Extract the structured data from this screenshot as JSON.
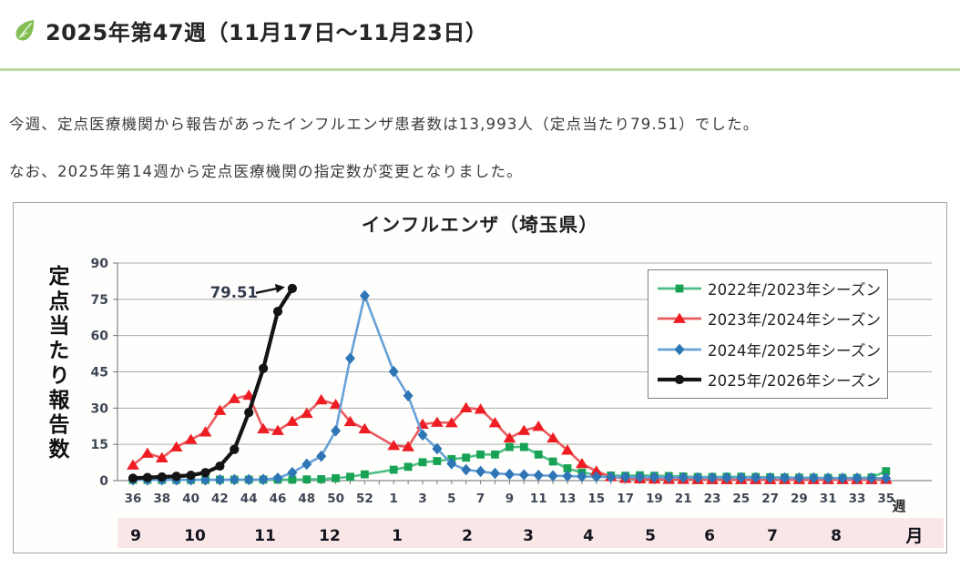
{
  "page": {
    "header": {
      "icon": "leaf-icon",
      "title": "2025年第47週（11月17日～11月23日）",
      "leaf_color": "#84bf55",
      "underline_color": "#bcdaa4"
    },
    "paragraphs": [
      "今週、定点医療機関から報告があったインフルエンザ患者数は13,993人（定点当たり79.51）でした。",
      "なお、2025年第14週から定点医療機関の指定数が変更となりました。"
    ]
  },
  "figure": {
    "title": "インフルエンザ（埼玉県）",
    "y_axis": {
      "title": "定点当たり報告数",
      "ticks": [
        0,
        15,
        30,
        45,
        60,
        75,
        90
      ],
      "max": 90
    },
    "x_axis": {
      "unit_week": "週",
      "unit_month": "月",
      "month_labels": [
        "9",
        "10",
        "11",
        "12",
        "1",
        "2",
        "3",
        "4",
        "5",
        "6",
        "7",
        "8"
      ],
      "month_band_color": "#f9e7e7"
    },
    "annotation": {
      "text": "79.51"
    },
    "chart_data": {
      "type": "line",
      "x_label": "週 (week, 36→52 then 1→35)",
      "weeks": [
        36,
        37,
        38,
        39,
        40,
        41,
        42,
        43,
        44,
        45,
        46,
        47,
        48,
        49,
        50,
        51,
        52,
        53,
        1,
        2,
        3,
        4,
        5,
        6,
        7,
        8,
        9,
        10,
        11,
        12,
        13,
        14,
        15,
        16,
        17,
        18,
        19,
        20,
        21,
        22,
        23,
        24,
        25,
        26,
        27,
        28,
        29,
        30,
        31,
        32,
        33,
        34,
        35
      ],
      "ylim": [
        0,
        90
      ],
      "grid": true,
      "legend_position": "top-right",
      "series": [
        {
          "name": "2022年/2023年シーズン",
          "marker": "square",
          "color": "#17a254",
          "line_color": "#4fbd87",
          "values": [
            0.3,
            0.3,
            0.3,
            0.3,
            0.3,
            0.3,
            0.4,
            0.4,
            0.4,
            0.4,
            0.4,
            0.4,
            0.5,
            0.6,
            1.0,
            1.6,
            2.6,
            null,
            4.5,
            5.7,
            7.6,
            8.1,
            8.9,
            9.5,
            10.8,
            10.8,
            13.9,
            13.9,
            10.8,
            7.9,
            5.1,
            3.3,
            2.5,
            2.1,
            2.0,
            2.2,
            2.0,
            1.9,
            1.7,
            1.5,
            1.5,
            1.6,
            1.6,
            1.5,
            1.4,
            1.3,
            1.2,
            1.2,
            1.1,
            1.1,
            1.1,
            1.3,
            3.9
          ]
        },
        {
          "name": "2023年/2024年シーズン",
          "marker": "triangle",
          "color": "#ee1d23",
          "line_color": "#e95a5e",
          "values": [
            6.4,
            11.3,
            9.4,
            13.9,
            17.0,
            20.1,
            29.0,
            33.9,
            35.3,
            21.4,
            20.7,
            24.5,
            27.8,
            33.4,
            31.5,
            24.4,
            21.4,
            null,
            14.5,
            14.0,
            23.3,
            24.1,
            23.9,
            30.1,
            29.5,
            23.9,
            17.6,
            20.7,
            22.4,
            17.6,
            12.6,
            7.0,
            3.9,
            1.6,
            0.9,
            0.7,
            0.6,
            0.5,
            0.5,
            0.4,
            0.4,
            0.4,
            0.4,
            0.4,
            0.4,
            0.4,
            0.4,
            0.4,
            0.4,
            0.4,
            0.4,
            0.4,
            0.5
          ]
        },
        {
          "name": "2024年/2025年シーズン",
          "marker": "diamond",
          "color": "#2e75b6",
          "line_color": "#68a1d8",
          "values": [
            0.3,
            0.3,
            0.3,
            0.3,
            0.3,
            0.3,
            0.3,
            0.4,
            0.4,
            0.5,
            1.0,
            3.3,
            6.8,
            10.1,
            20.6,
            50.6,
            76.5,
            null,
            45.1,
            35.1,
            18.9,
            13.2,
            7.0,
            4.5,
            3.8,
            3.0,
            2.6,
            2.4,
            2.2,
            2.0,
            1.9,
            1.7,
            1.6,
            1.5,
            1.5,
            1.4,
            1.4,
            1.3,
            1.3,
            1.2,
            1.2,
            1.2,
            1.2,
            1.2,
            1.1,
            1.1,
            1.1,
            1.1,
            1.0,
            1.0,
            1.0,
            1.0,
            1.0
          ]
        },
        {
          "name": "2025年/2026年シーズン",
          "marker": "circle",
          "color": "#141414",
          "line_color": "#141414",
          "values": [
            1.0,
            1.3,
            1.5,
            1.8,
            2.2,
            3.3,
            6.0,
            12.9,
            28.2,
            46.4,
            70.0,
            79.51,
            null,
            null,
            null,
            null,
            null,
            null,
            null,
            null,
            null,
            null,
            null,
            null,
            null,
            null,
            null,
            null,
            null,
            null,
            null,
            null,
            null,
            null,
            null,
            null,
            null,
            null,
            null,
            null,
            null,
            null,
            null,
            null,
            null,
            null,
            null,
            null,
            null,
            null,
            null,
            null,
            null
          ]
        }
      ]
    }
  }
}
